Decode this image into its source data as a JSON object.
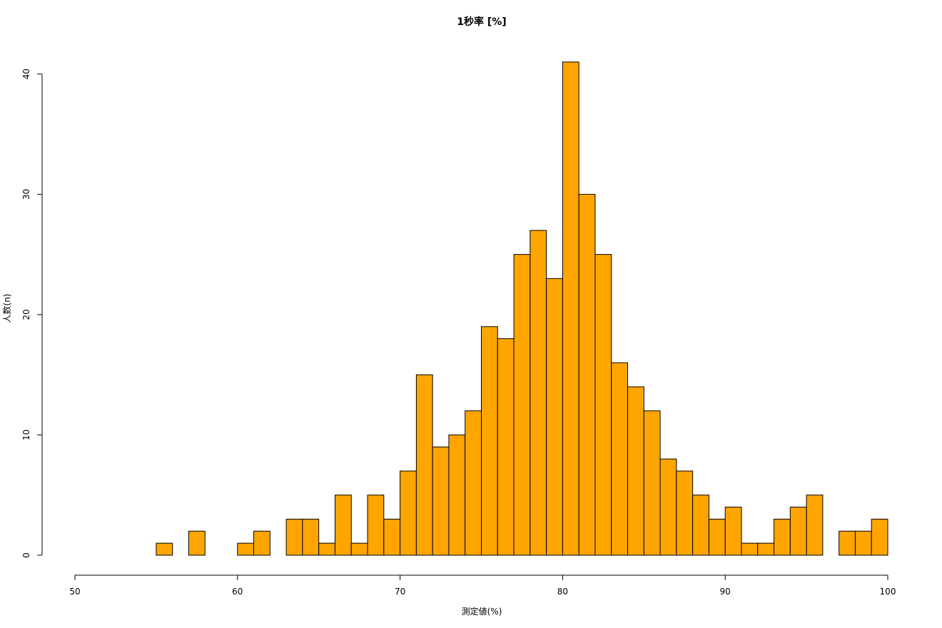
{
  "chart_data": {
    "type": "histogram",
    "title": "1秒率 [%]",
    "x_label": "測定値(%)",
    "y_label": "人数(n)",
    "bins": [
      55,
      56,
      57,
      58,
      59,
      60,
      61,
      62,
      63,
      64,
      65,
      66,
      67,
      68,
      69,
      70,
      71,
      72,
      73,
      74,
      75,
      76,
      77,
      78,
      79,
      80,
      81,
      82,
      83,
      84,
      85,
      86,
      87,
      88,
      89,
      90,
      91,
      92,
      93,
      94,
      95,
      96,
      97,
      98,
      99,
      100
    ],
    "values": [
      1,
      0,
      2,
      0,
      0,
      1,
      2,
      0,
      3,
      3,
      1,
      5,
      1,
      5,
      3,
      7,
      15,
      9,
      10,
      12,
      19,
      18,
      25,
      27,
      23,
      41,
      30,
      25,
      16,
      14,
      12,
      8,
      7,
      5,
      3,
      4,
      1,
      1,
      3,
      4,
      5,
      0,
      2,
      2,
      3
    ],
    "color": "#ffa500",
    "xlim": [
      50,
      100
    ],
    "xticks": [
      50,
      60,
      70,
      80,
      90,
      100
    ],
    "ylim": [
      0,
      42
    ],
    "yticks": [
      0,
      10,
      20,
      30,
      40
    ]
  }
}
